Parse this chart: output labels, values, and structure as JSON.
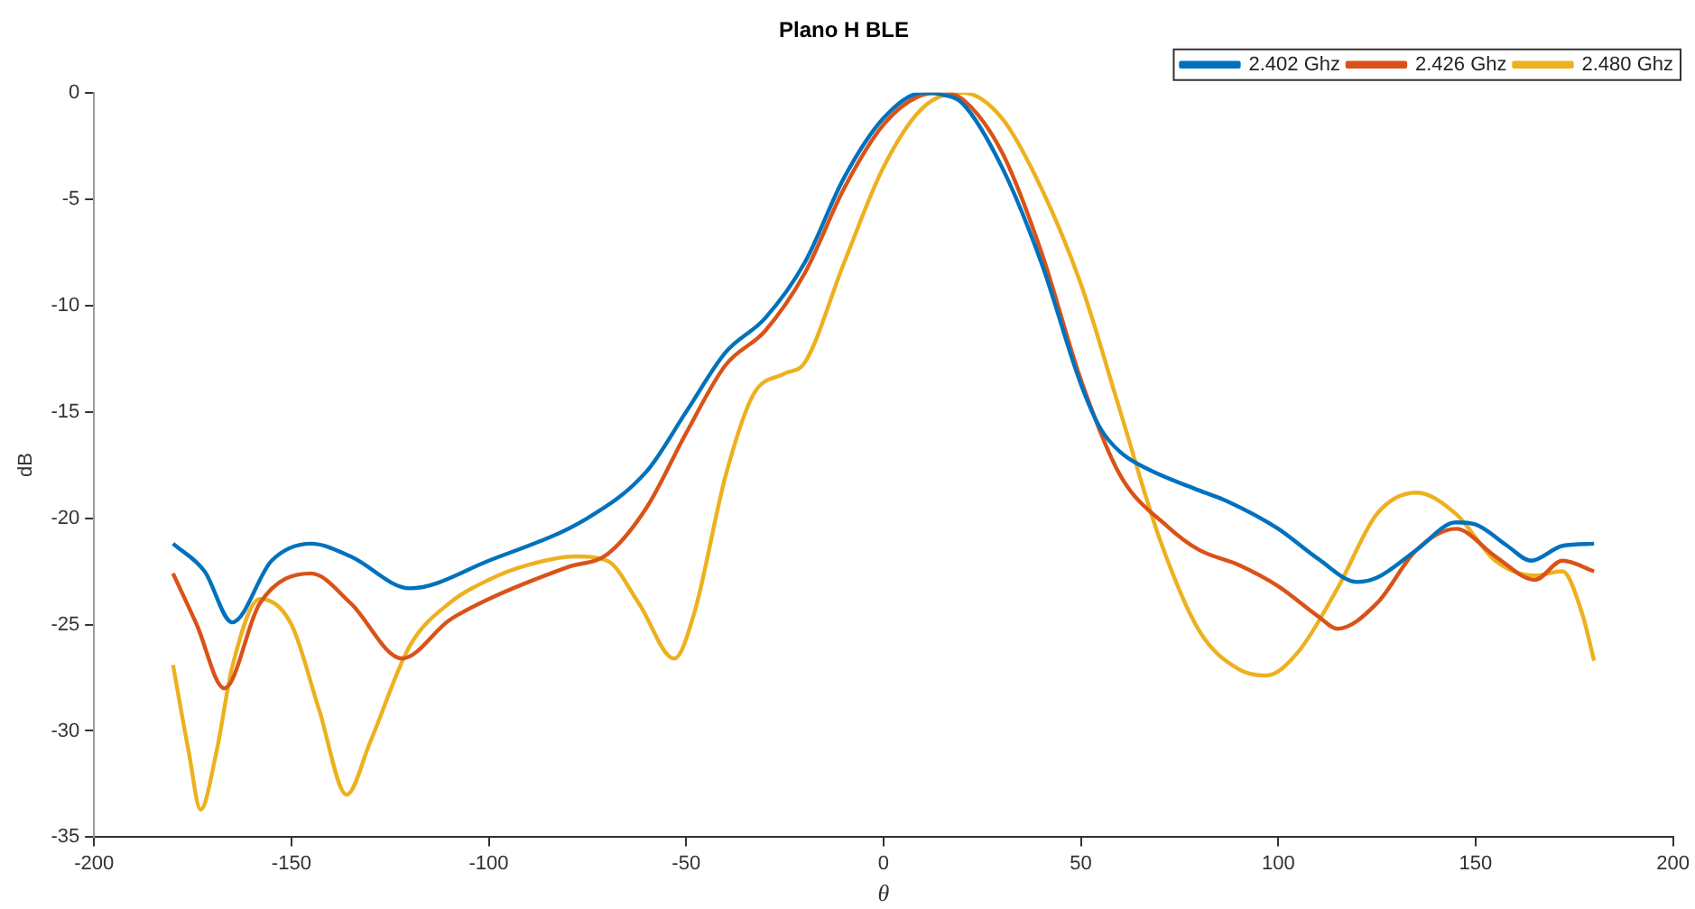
{
  "chart_data": {
    "type": "line",
    "title": "Plano H BLE",
    "xlabel": "θ",
    "ylabel": "dB",
    "xlim": [
      -200,
      200
    ],
    "xticks": [
      -200,
      -150,
      -100,
      -50,
      0,
      50,
      100,
      150,
      200
    ],
    "ylim": [
      -35,
      0
    ],
    "yticks": [
      -35,
      -30,
      -25,
      -20,
      -15,
      -10,
      -5,
      0
    ],
    "grid": false,
    "legend": "top right",
    "marker": "none",
    "line_style": "solid",
    "series": [
      {
        "name": "2.402 Ghz",
        "color": "#0072bd",
        "x": [
          -180,
          -172,
          -165,
          -155,
          -145,
          -135,
          -120,
          -100,
          -75,
          -60,
          -50,
          -40,
          -30,
          -20,
          -10,
          0,
          10,
          15,
          20,
          30,
          40,
          50,
          55,
          60,
          67,
          80,
          87,
          100,
          110,
          120,
          125,
          135,
          145,
          150,
          158,
          164,
          172,
          180
        ],
        "values": [
          -21.2,
          -22.5,
          -24.9,
          -22.0,
          -21.2,
          -21.8,
          -23.3,
          -22.0,
          -20.0,
          -17.8,
          -15.0,
          -12.2,
          -10.6,
          -8.0,
          -4.0,
          -1.2,
          0,
          -0.1,
          -0.5,
          -3.5,
          -8.0,
          -13.7,
          -15.8,
          -16.9,
          -17.7,
          -18.7,
          -19.2,
          -20.5,
          -21.9,
          -23.0,
          -22.8,
          -21.5,
          -20.2,
          -20.3,
          -21.3,
          -22.0,
          -21.3,
          -21.2
        ]
      },
      {
        "name": "2.426 Ghz",
        "color": "#d95319",
        "x": [
          -180,
          -174,
          -167,
          -158,
          -145,
          -135,
          -122,
          -110,
          -100,
          -80,
          -70,
          -60,
          -50,
          -40,
          -30,
          -20,
          -10,
          0,
          10,
          15,
          20,
          30,
          40,
          50,
          60,
          72,
          80,
          90,
          100,
          110,
          115,
          125,
          135,
          145,
          155,
          165,
          172,
          180
        ],
        "values": [
          -22.6,
          -25.0,
          -28.0,
          -24.0,
          -22.6,
          -24.0,
          -26.6,
          -24.8,
          -23.8,
          -22.3,
          -21.7,
          -19.5,
          -16.0,
          -12.8,
          -11.2,
          -8.5,
          -4.5,
          -1.5,
          -0.1,
          0,
          -0.3,
          -2.8,
          -7.5,
          -13.5,
          -18.0,
          -20.4,
          -21.5,
          -22.2,
          -23.2,
          -24.6,
          -25.2,
          -24.0,
          -21.5,
          -20.5,
          -21.8,
          -22.9,
          -22.0,
          -22.5
        ]
      },
      {
        "name": "2.480 Ghz",
        "color": "#edb120",
        "x": [
          -180,
          -176,
          -173,
          -169,
          -165,
          -158,
          -150,
          -143,
          -136,
          -130,
          -120,
          -110,
          -100,
          -90,
          -78,
          -70,
          -62,
          -53,
          -48,
          -40,
          -33,
          -25,
          -20,
          -10,
          0,
          10,
          20,
          30,
          40,
          50,
          60,
          70,
          80,
          90,
          97,
          105,
          115,
          125,
          135,
          145,
          155,
          165,
          172,
          177,
          180
        ],
        "values": [
          -26.9,
          -31.0,
          -33.7,
          -31.0,
          -27.0,
          -23.8,
          -25.0,
          -29.0,
          -33.0,
          -30.5,
          -26.0,
          -24.0,
          -22.9,
          -22.2,
          -21.8,
          -22.0,
          -24.0,
          -26.6,
          -24.5,
          -18.0,
          -14.2,
          -13.2,
          -12.7,
          -8.0,
          -3.5,
          -0.7,
          0,
          -1.2,
          -4.5,
          -9.0,
          -15.0,
          -21.0,
          -25.3,
          -27.1,
          -27.4,
          -26.3,
          -23.3,
          -19.8,
          -18.8,
          -19.8,
          -22.0,
          -22.7,
          -22.5,
          -24.5,
          -26.7
        ]
      }
    ]
  }
}
